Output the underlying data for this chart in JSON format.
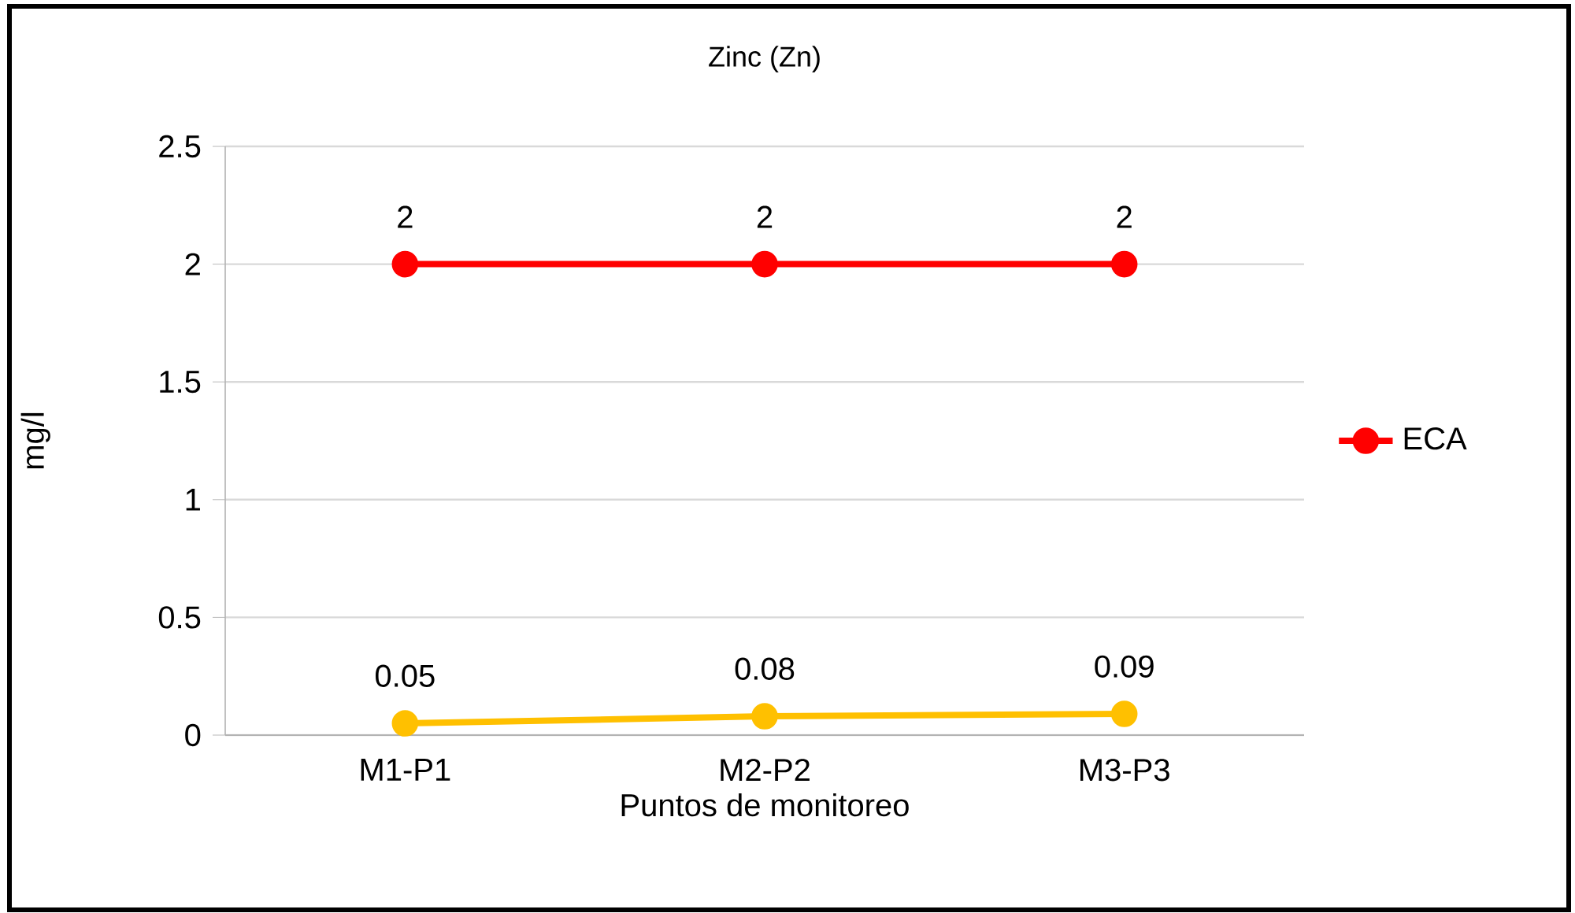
{
  "chart_data": {
    "type": "line",
    "title": "Zinc (Zn)",
    "xlabel": "Puntos de monitoreo",
    "ylabel": "mg/l",
    "categories": [
      "M1-P1",
      "M2-P2",
      "M3-P3"
    ],
    "series": [
      {
        "name": "ECA",
        "color": "#ff0000",
        "values": [
          2,
          2,
          2
        ]
      },
      {
        "color": "#ffc000",
        "values": [
          0.05,
          0.08,
          0.09
        ]
      }
    ],
    "ylim": [
      0,
      2.5
    ],
    "yticks": [
      0,
      0.5,
      1,
      1.5,
      2,
      2.5
    ],
    "grid": "y",
    "legend": "right",
    "marker": "circle",
    "line_style": "solid",
    "data_labels": true
  }
}
